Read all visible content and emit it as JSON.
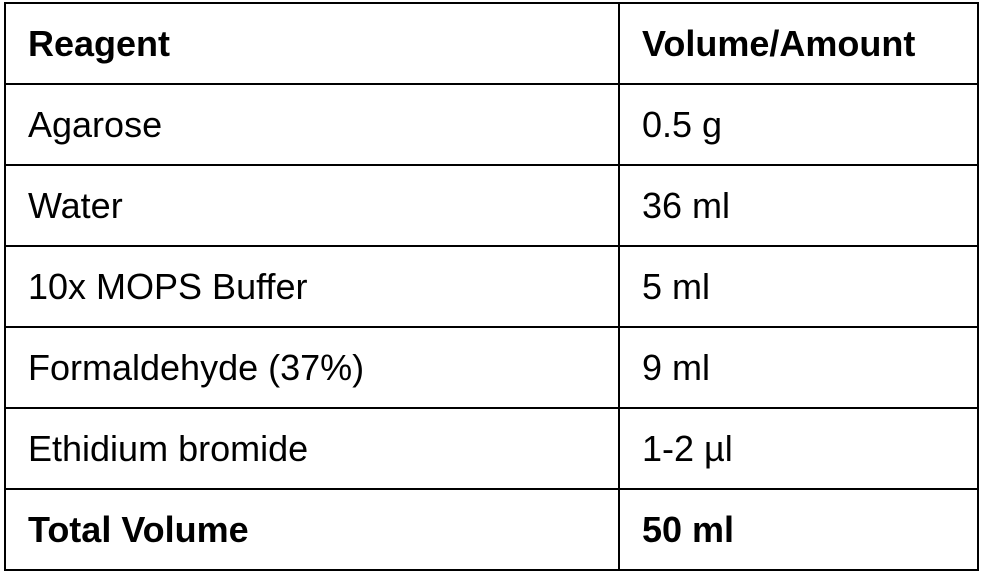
{
  "table": {
    "header": [
      "Reagent",
      "Volume/Amount"
    ],
    "rows": [
      [
        "Agarose",
        "0.5 g"
      ],
      [
        "Water",
        "36 ml"
      ],
      [
        "10x MOPS Buffer",
        "5 ml"
      ],
      [
        "Formaldehyde (37%)",
        "9 ml"
      ],
      [
        "Ethidium bromide",
        "1-2 µl"
      ]
    ],
    "total": [
      "Total Volume",
      "50 ml"
    ]
  }
}
